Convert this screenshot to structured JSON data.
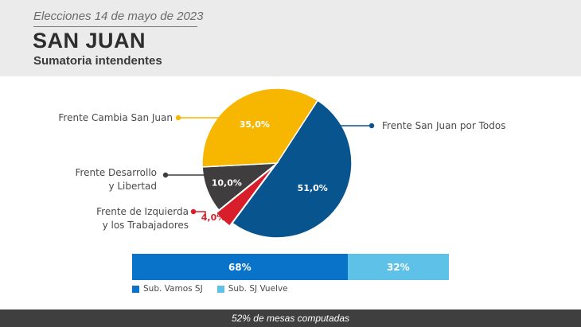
{
  "header": {
    "date": "Elecciones 14 de mayo de 2023",
    "title": "SAN JUAN",
    "subtitle": "Sumatoria intendentes"
  },
  "chart_data": [
    {
      "type": "pie",
      "slices": [
        {
          "name": "Frente San Juan por Todos",
          "name_lines": [
            "Frente San Juan por Todos"
          ],
          "value": 51.0,
          "label": "51,0%",
          "color": "#08548f",
          "label_color": "#ffffff"
        },
        {
          "name": "Frente de Izquierda y los Trabajadores",
          "name_lines": [
            "Frente de Izquierda",
            "y los Trabajadores"
          ],
          "value": 4.0,
          "label": "4,0%",
          "color": "#d81e2a",
          "label_color": "#d81e2a"
        },
        {
          "name": "Frente Desarrollo y Libertad",
          "name_lines": [
            "Frente Desarrollo",
            "y Libertad"
          ],
          "value": 10.0,
          "label": "10,0%",
          "color": "#3f3d3e",
          "label_color": "#ffffff"
        },
        {
          "name": "Frente Cambia San Juan",
          "name_lines": [
            "Frente Cambia San Juan"
          ],
          "value": 35.0,
          "label": "35,0%",
          "color": "#f7b700",
          "label_color": "#ffffff"
        }
      ]
    },
    {
      "type": "bar",
      "stacked": true,
      "orientation": "horizontal",
      "series": [
        {
          "name": "Sub. Vamos SJ",
          "value": 68,
          "label": "68%",
          "color": "#0873c9"
        },
        {
          "name": "Sub. SJ Vuelve",
          "value": 32,
          "label": "32%",
          "color": "#5ec1e8"
        }
      ]
    }
  ],
  "footer": {
    "text": "52% de mesas computadas"
  }
}
